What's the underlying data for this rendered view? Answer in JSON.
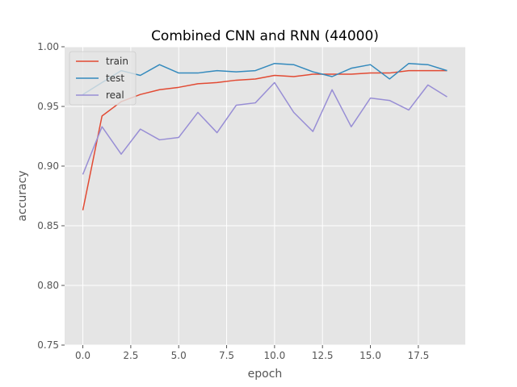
{
  "chart_data": {
    "type": "line",
    "title": "Combined CNN and RNN (44000)",
    "xlabel": "epoch",
    "ylabel": "accuracy",
    "xlim": [
      -0.95,
      19.95
    ],
    "ylim": [
      0.75,
      1.0
    ],
    "xticks": [
      0.0,
      2.5,
      5.0,
      7.5,
      10.0,
      12.5,
      15.0,
      17.5
    ],
    "xtick_labels": [
      "0.0",
      "2.5",
      "5.0",
      "7.5",
      "10.0",
      "12.5",
      "15.0",
      "17.5"
    ],
    "yticks": [
      0.75,
      0.8,
      0.85,
      0.9,
      0.95,
      1.0
    ],
    "ytick_labels": [
      "0.75",
      "0.80",
      "0.85",
      "0.90",
      "0.95",
      "1.00"
    ],
    "grid": true,
    "legend_position": "top-left",
    "x": [
      0,
      1,
      2,
      3,
      4,
      5,
      6,
      7,
      8,
      9,
      10,
      11,
      12,
      13,
      14,
      15,
      16,
      17,
      18,
      19
    ],
    "series": [
      {
        "name": "train",
        "color": "#E24A33",
        "values": [
          0.863,
          0.942,
          0.954,
          0.96,
          0.964,
          0.966,
          0.969,
          0.97,
          0.972,
          0.973,
          0.976,
          0.975,
          0.977,
          0.977,
          0.977,
          0.978,
          0.978,
          0.98,
          0.98,
          0.98
        ]
      },
      {
        "name": "test",
        "color": "#348ABD",
        "values": [
          0.96,
          0.97,
          0.98,
          0.976,
          0.985,
          0.978,
          0.978,
          0.98,
          0.979,
          0.98,
          0.986,
          0.985,
          0.979,
          0.975,
          0.982,
          0.985,
          0.973,
          0.986,
          0.985,
          0.98
        ]
      },
      {
        "name": "real",
        "color": "#988ED5",
        "values": [
          0.893,
          0.933,
          0.91,
          0.931,
          0.922,
          0.924,
          0.945,
          0.928,
          0.951,
          0.953,
          0.97,
          0.945,
          0.929,
          0.964,
          0.933,
          0.957,
          0.955,
          0.947,
          0.968,
          0.958
        ]
      }
    ]
  },
  "colors": {
    "plot_background": "#E5E5E5",
    "grid": "#FFFFFF",
    "tick_text": "#555555"
  }
}
